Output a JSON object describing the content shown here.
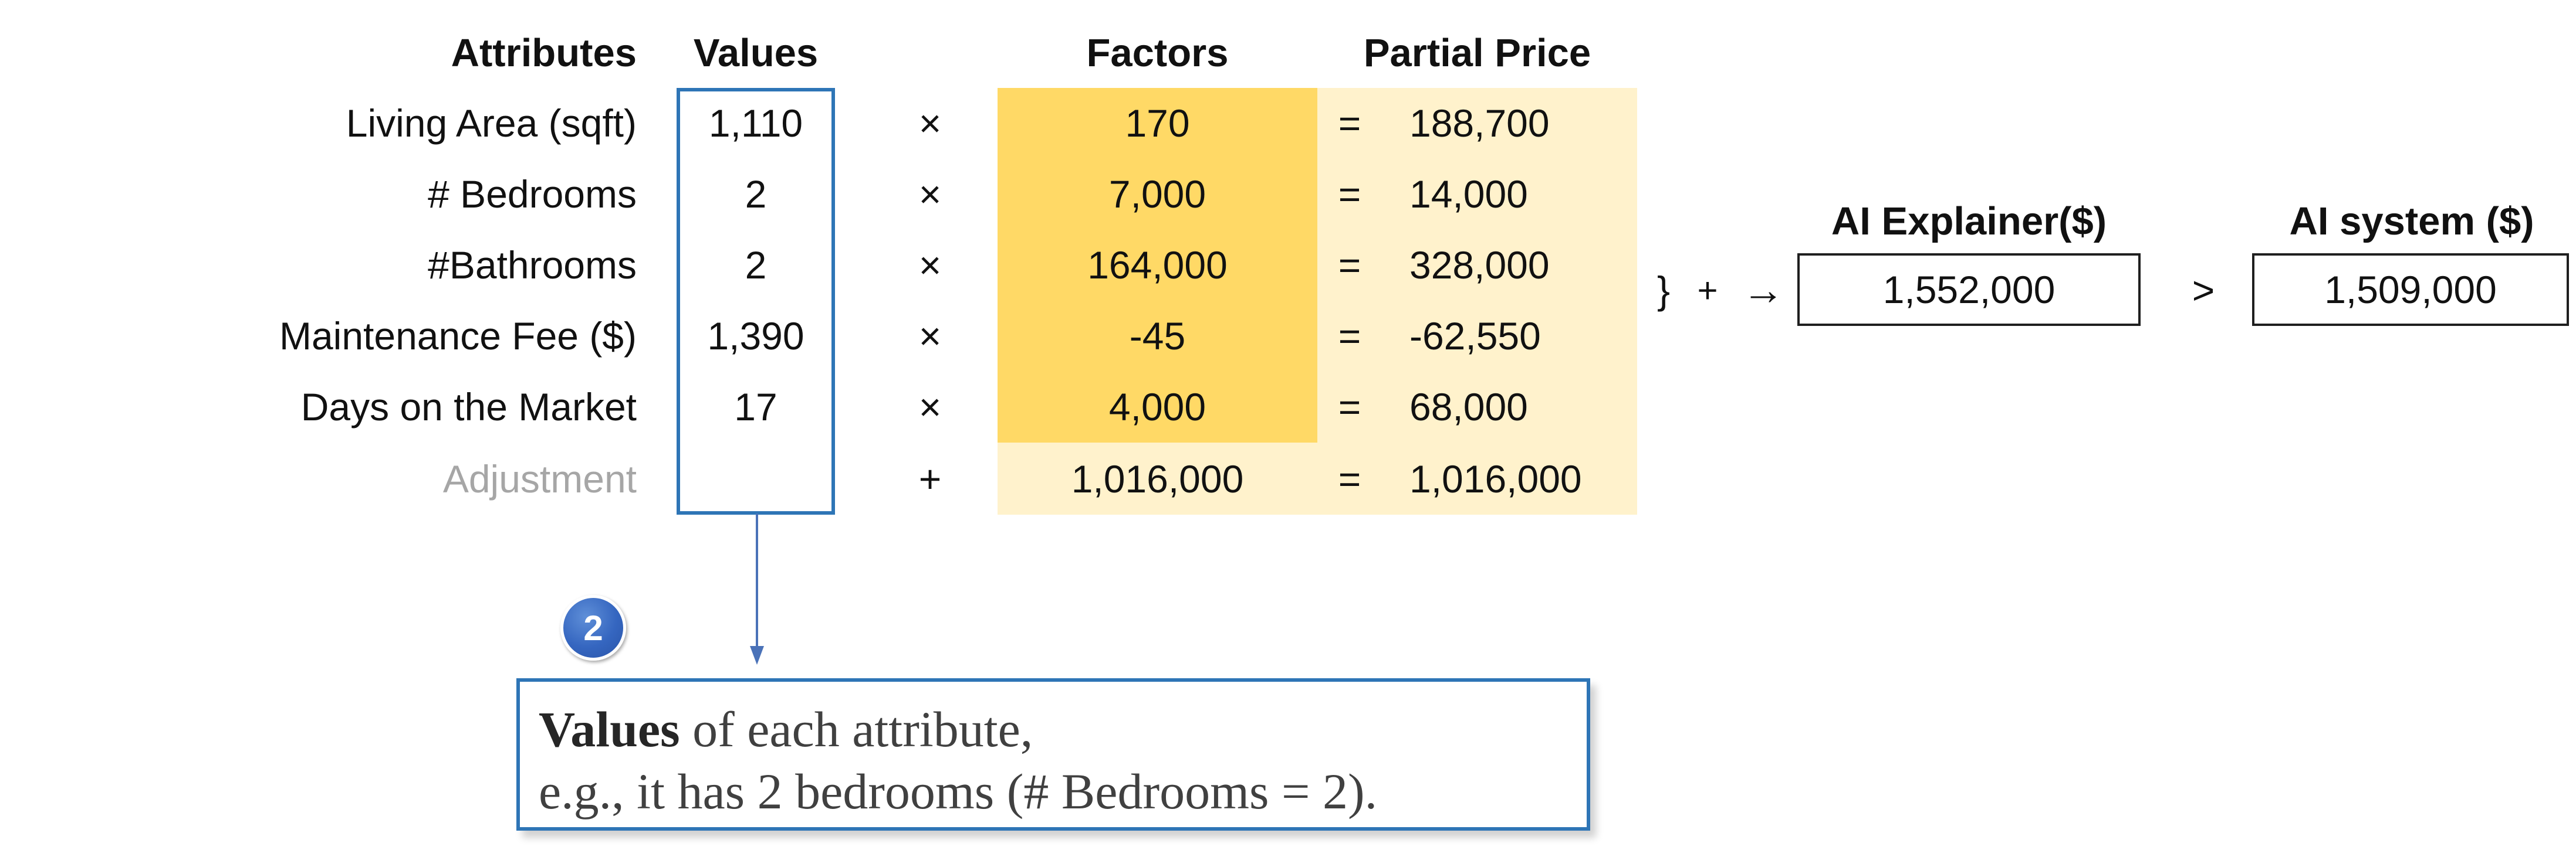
{
  "headers": {
    "attributes": "Attributes",
    "values": "Values",
    "factors": "Factors",
    "partial_price": "Partial Price"
  },
  "rows": [
    {
      "attribute": "Living Area (sqft)",
      "value": "1,110",
      "op": "×",
      "factor": "170",
      "eq": "=",
      "partial": "188,700"
    },
    {
      "attribute": "# Bedrooms",
      "value": "2",
      "op": "×",
      "factor": "7,000",
      "eq": "=",
      "partial": "14,000"
    },
    {
      "attribute": "#Bathrooms",
      "value": "2",
      "op": "×",
      "factor": "164,000",
      "eq": "=",
      "partial": "328,000"
    },
    {
      "attribute": "Maintenance Fee ($)",
      "value": "1,390",
      "op": "×",
      "factor": "-45",
      "eq": "=",
      "partial": "-62,550"
    },
    {
      "attribute": "Days on the Market",
      "value": "17",
      "op": "×",
      "factor": "4,000",
      "eq": "=",
      "partial": "68,000"
    },
    {
      "attribute": "Adjustment",
      "value": "",
      "op": "+",
      "factor": "1,016,000",
      "eq": "=",
      "partial": "1,016,000"
    }
  ],
  "sum": {
    "brace": "}",
    "plus": "+",
    "arrow": "→"
  },
  "explainer": {
    "label": "AI Explainer($)",
    "value": "1,552,000"
  },
  "comparison": ">",
  "system": {
    "label": "AI system ($)",
    "value": "1,509,000"
  },
  "badge_number": "2",
  "callout": {
    "bold": "Values",
    "line1_rest": " of each attribute,",
    "line2": "e.g., it has 2 bedrooms (# Bedrooms = 2)."
  },
  "colors": {
    "factor_fill": "#ffd966",
    "partial_fill": "#fff2cc",
    "frame_blue": "#2e75b6",
    "badge_blue": "#3566c0",
    "muted_text": "#a6a6a6"
  }
}
